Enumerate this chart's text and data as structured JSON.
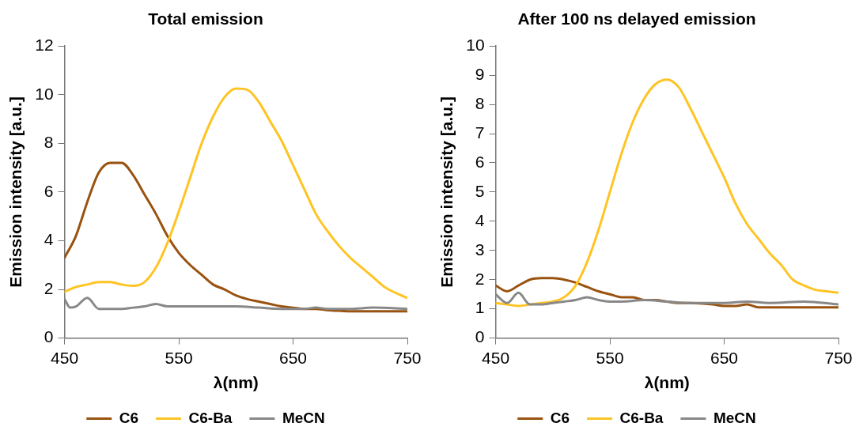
{
  "chart_data": [
    {
      "type": "line",
      "title": "Total emission",
      "xlabel": "λ(nm)",
      "ylabel": "Emission intensity [a.u.]",
      "xlim": [
        450,
        750
      ],
      "xticks": [
        450,
        550,
        650,
        750
      ],
      "ylim": [
        0,
        12
      ],
      "yticks": [
        0,
        2,
        4,
        6,
        8,
        10,
        12
      ],
      "grid": false,
      "legend": "bottom",
      "marker": "none",
      "series": [
        {
          "name": "C6",
          "color": "#99520f",
          "x": [
            450,
            460,
            470,
            480,
            490,
            500,
            510,
            520,
            530,
            540,
            550,
            560,
            570,
            580,
            590,
            600,
            610,
            620,
            630,
            640,
            650,
            660,
            670,
            680,
            690,
            700,
            710,
            720,
            730,
            740,
            750
          ],
          "values": [
            3.3,
            4.2,
            5.6,
            6.8,
            7.2,
            7.2,
            6.7,
            5.9,
            5.1,
            4.2,
            3.5,
            3.0,
            2.6,
            2.2,
            2.0,
            1.75,
            1.6,
            1.5,
            1.4,
            1.3,
            1.25,
            1.2,
            1.2,
            1.15,
            1.12,
            1.1,
            1.1,
            1.1,
            1.1,
            1.1,
            1.1
          ]
        },
        {
          "name": "C6-Ba",
          "color": "#ffc423",
          "x": [
            450,
            460,
            470,
            480,
            490,
            500,
            510,
            520,
            530,
            540,
            550,
            560,
            570,
            580,
            590,
            600,
            610,
            620,
            630,
            640,
            650,
            660,
            670,
            680,
            690,
            700,
            710,
            720,
            730,
            740,
            750
          ],
          "values": [
            1.9,
            2.1,
            2.2,
            2.3,
            2.3,
            2.2,
            2.15,
            2.3,
            2.9,
            3.9,
            5.2,
            6.6,
            8.0,
            9.1,
            9.9,
            10.25,
            10.2,
            9.7,
            8.9,
            8.1,
            7.1,
            6.1,
            5.1,
            4.4,
            3.8,
            3.3,
            2.9,
            2.5,
            2.1,
            1.85,
            1.65
          ]
        },
        {
          "name": "MeCN",
          "color": "#888888",
          "x": [
            450,
            455,
            460,
            470,
            480,
            490,
            500,
            510,
            520,
            530,
            540,
            550,
            560,
            580,
            600,
            620,
            640,
            660,
            670,
            680,
            700,
            720,
            750
          ],
          "values": [
            1.6,
            1.25,
            1.3,
            1.65,
            1.2,
            1.2,
            1.2,
            1.25,
            1.3,
            1.4,
            1.3,
            1.3,
            1.3,
            1.3,
            1.3,
            1.25,
            1.2,
            1.2,
            1.25,
            1.2,
            1.2,
            1.25,
            1.2
          ]
        }
      ]
    },
    {
      "type": "line",
      "title": "After 100 ns delayed emission",
      "xlabel": "λ(nm)",
      "ylabel": "Emission intensity [a.u.]",
      "xlim": [
        450,
        750
      ],
      "xticks": [
        450,
        550,
        650,
        750
      ],
      "ylim": [
        0,
        10
      ],
      "yticks": [
        0,
        1,
        2,
        3,
        4,
        5,
        6,
        7,
        8,
        9,
        10
      ],
      "grid": false,
      "legend": "bottom",
      "marker": "none",
      "series": [
        {
          "name": "C6",
          "color": "#99520f",
          "x": [
            450,
            460,
            470,
            480,
            490,
            500,
            510,
            520,
            530,
            540,
            550,
            560,
            570,
            580,
            590,
            600,
            610,
            620,
            640,
            650,
            660,
            670,
            680,
            700,
            720,
            750
          ],
          "values": [
            1.8,
            1.6,
            1.8,
            2.0,
            2.05,
            2.05,
            2.0,
            1.9,
            1.75,
            1.6,
            1.5,
            1.4,
            1.4,
            1.3,
            1.3,
            1.25,
            1.2,
            1.2,
            1.15,
            1.1,
            1.1,
            1.15,
            1.05,
            1.05,
            1.05,
            1.05
          ]
        },
        {
          "name": "C6-Ba",
          "color": "#ffc423",
          "x": [
            450,
            460,
            470,
            480,
            490,
            500,
            510,
            520,
            530,
            540,
            550,
            560,
            570,
            580,
            590,
            600,
            610,
            620,
            630,
            640,
            650,
            660,
            670,
            680,
            690,
            700,
            710,
            720,
            730,
            740,
            750
          ],
          "values": [
            1.2,
            1.15,
            1.1,
            1.15,
            1.2,
            1.25,
            1.4,
            1.8,
            2.6,
            3.7,
            5.0,
            6.3,
            7.4,
            8.2,
            8.7,
            8.85,
            8.6,
            7.9,
            7.1,
            6.3,
            5.5,
            4.6,
            3.9,
            3.4,
            2.9,
            2.5,
            2.0,
            1.8,
            1.65,
            1.6,
            1.55
          ]
        },
        {
          "name": "MeCN",
          "color": "#888888",
          "x": [
            450,
            460,
            470,
            480,
            490,
            500,
            510,
            520,
            530,
            540,
            550,
            560,
            580,
            600,
            620,
            640,
            650,
            670,
            690,
            720,
            750
          ],
          "values": [
            1.5,
            1.2,
            1.55,
            1.15,
            1.15,
            1.2,
            1.25,
            1.3,
            1.4,
            1.3,
            1.25,
            1.25,
            1.3,
            1.25,
            1.2,
            1.2,
            1.2,
            1.25,
            1.2,
            1.25,
            1.15
          ]
        }
      ]
    }
  ]
}
